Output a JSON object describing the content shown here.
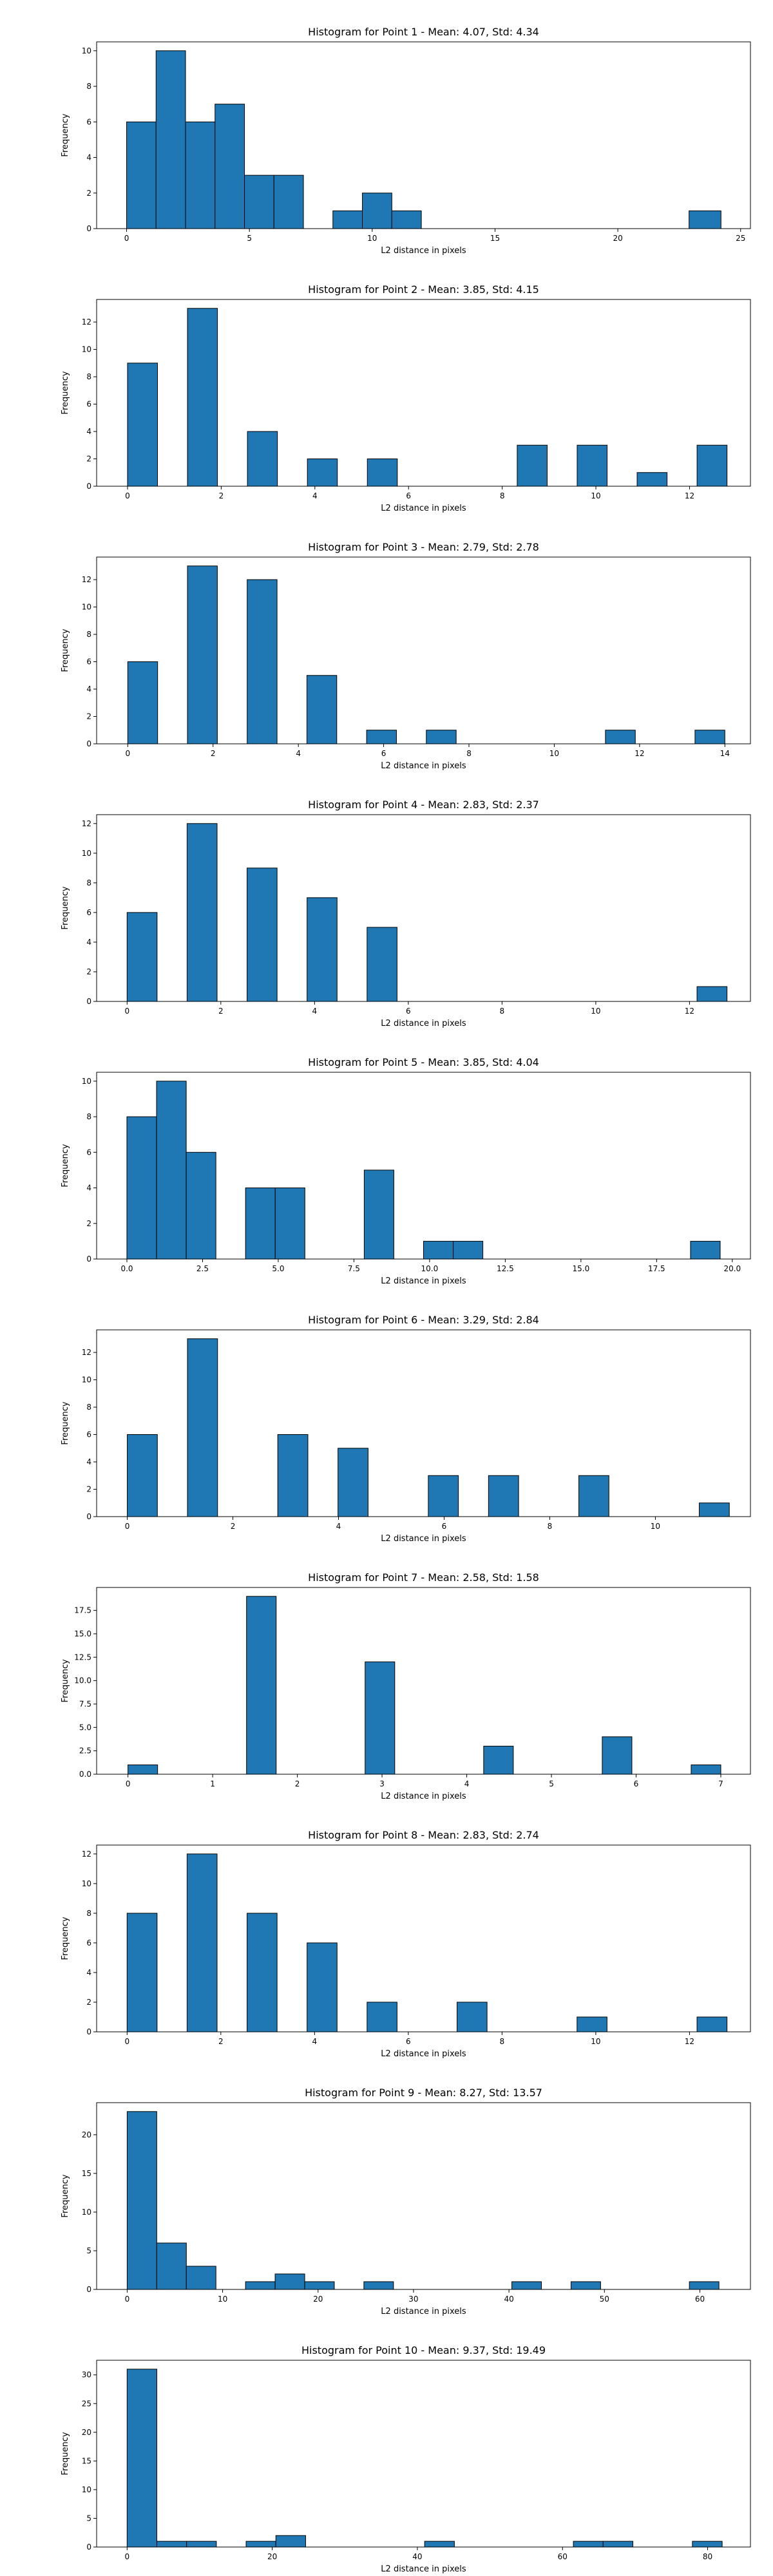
{
  "colors": {
    "bar_fill": "#1f77b4",
    "bar_edge": "#000000",
    "frame": "#000000"
  },
  "chart_data": [
    {
      "type": "bar",
      "title": "Histogram for Point 1 - Mean: 4.07, Std: 4.34",
      "xlabel": "L2 distance in pixels",
      "ylabel": "Frequency",
      "xlim": [
        -1.22,
        25.4
      ],
      "ylim": [
        0,
        10.5
      ],
      "xticks": [
        0,
        5,
        10,
        15,
        20,
        25
      ],
      "xtick_labels": [
        "0",
        "5",
        "10",
        "15",
        "20",
        "25"
      ],
      "yticks": [
        0,
        2,
        4,
        6,
        8,
        10
      ],
      "ytick_labels": [
        "0",
        "2",
        "4",
        "6",
        "8",
        "10"
      ],
      "bins": [
        {
          "x0": 0,
          "x1": 1.2,
          "count": 6
        },
        {
          "x0": 1.2,
          "x1": 2.4,
          "count": 10
        },
        {
          "x0": 2.4,
          "x1": 3.6,
          "count": 6
        },
        {
          "x0": 3.6,
          "x1": 4.8,
          "count": 7
        },
        {
          "x0": 4.8,
          "x1": 6.0,
          "count": 3
        },
        {
          "x0": 6.0,
          "x1": 7.2,
          "count": 3
        },
        {
          "x0": 8.4,
          "x1": 9.6,
          "count": 1
        },
        {
          "x0": 9.6,
          "x1": 10.8,
          "count": 2
        },
        {
          "x0": 10.8,
          "x1": 12.0,
          "count": 1
        },
        {
          "x0": 22.9,
          "x1": 24.2,
          "count": 1
        }
      ]
    },
    {
      "type": "bar",
      "title": "Histogram for Point 2 - Mean: 3.85, Std: 4.15",
      "xlabel": "L2 distance in pixels",
      "ylabel": "Frequency",
      "xlim": [
        -0.66,
        13.3
      ],
      "ylim": [
        0,
        13.65
      ],
      "xticks": [
        0,
        2,
        4,
        6,
        8,
        10,
        12
      ],
      "xtick_labels": [
        "0",
        "2",
        "4",
        "6",
        "8",
        "10",
        "12"
      ],
      "yticks": [
        0,
        2,
        4,
        6,
        8,
        10,
        12
      ],
      "ytick_labels": [
        "0",
        "2",
        "4",
        "6",
        "8",
        "10",
        "12"
      ],
      "bins": [
        {
          "x0": 0,
          "x1": 0.64,
          "count": 9
        },
        {
          "x0": 1.28,
          "x1": 1.92,
          "count": 13
        },
        {
          "x0": 2.56,
          "x1": 3.2,
          "count": 4
        },
        {
          "x0": 3.84,
          "x1": 4.48,
          "count": 2
        },
        {
          "x0": 5.12,
          "x1": 5.76,
          "count": 2
        },
        {
          "x0": 8.32,
          "x1": 8.96,
          "count": 3
        },
        {
          "x0": 9.6,
          "x1": 10.24,
          "count": 3
        },
        {
          "x0": 10.88,
          "x1": 11.52,
          "count": 1
        },
        {
          "x0": 12.16,
          "x1": 12.8,
          "count": 3
        }
      ]
    },
    {
      "type": "bar",
      "title": "Histogram for Point 3 - Mean: 2.79, Std: 2.78",
      "xlabel": "L2 distance in pixels",
      "ylabel": "Frequency",
      "xlim": [
        -0.73,
        14.6
      ],
      "ylim": [
        0,
        13.65
      ],
      "xticks": [
        0,
        2,
        4,
        6,
        8,
        10,
        12,
        14
      ],
      "xtick_labels": [
        "0",
        "2",
        "4",
        "6",
        "8",
        "10",
        "12",
        "14"
      ],
      "yticks": [
        0,
        2,
        4,
        6,
        8,
        10,
        12
      ],
      "ytick_labels": [
        "0",
        "2",
        "4",
        "6",
        "8",
        "10",
        "12"
      ],
      "bins": [
        {
          "x0": 0,
          "x1": 0.7,
          "count": 6
        },
        {
          "x0": 1.4,
          "x1": 2.1,
          "count": 13
        },
        {
          "x0": 2.8,
          "x1": 3.5,
          "count": 12
        },
        {
          "x0": 4.2,
          "x1": 4.9,
          "count": 5
        },
        {
          "x0": 5.6,
          "x1": 6.3,
          "count": 1
        },
        {
          "x0": 7.0,
          "x1": 7.7,
          "count": 1
        },
        {
          "x0": 11.2,
          "x1": 11.9,
          "count": 1
        },
        {
          "x0": 13.3,
          "x1": 14.0,
          "count": 1
        }
      ]
    },
    {
      "type": "bar",
      "title": "Histogram for Point 4 - Mean: 2.83, Std: 2.37",
      "xlabel": "L2 distance in pixels",
      "ylabel": "Frequency",
      "xlim": [
        -0.65,
        13.3
      ],
      "ylim": [
        0,
        12.6
      ],
      "xticks": [
        0,
        2,
        4,
        6,
        8,
        10,
        12
      ],
      "xtick_labels": [
        "0",
        "2",
        "4",
        "6",
        "8",
        "10",
        "12"
      ],
      "yticks": [
        0,
        2,
        4,
        6,
        8,
        10,
        12
      ],
      "ytick_labels": [
        "0",
        "2",
        "4",
        "6",
        "8",
        "10",
        "12"
      ],
      "bins": [
        {
          "x0": 0,
          "x1": 0.64,
          "count": 6
        },
        {
          "x0": 1.28,
          "x1": 1.92,
          "count": 12
        },
        {
          "x0": 2.56,
          "x1": 3.2,
          "count": 9
        },
        {
          "x0": 3.84,
          "x1": 4.48,
          "count": 7
        },
        {
          "x0": 5.12,
          "x1": 5.76,
          "count": 5
        },
        {
          "x0": 12.16,
          "x1": 12.8,
          "count": 1
        }
      ]
    },
    {
      "type": "bar",
      "title": "Histogram for Point 5 - Mean: 3.85, Std: 4.04",
      "xlabel": "L2 distance in pixels",
      "ylabel": "Frequency",
      "xlim": [
        -1.0,
        20.6
      ],
      "ylim": [
        0,
        10.5
      ],
      "xticks": [
        0,
        2.5,
        5,
        7.5,
        10,
        12.5,
        15,
        17.5,
        20
      ],
      "xtick_labels": [
        "0.0",
        "2.5",
        "5.0",
        "7.5",
        "10.0",
        "12.5",
        "15.0",
        "17.5",
        "20.0"
      ],
      "yticks": [
        0,
        2,
        4,
        6,
        8,
        10
      ],
      "ytick_labels": [
        "0",
        "2",
        "4",
        "6",
        "8",
        "10"
      ],
      "bins": [
        {
          "x0": 0,
          "x1": 0.98,
          "count": 8
        },
        {
          "x0": 0.98,
          "x1": 1.96,
          "count": 10
        },
        {
          "x0": 1.96,
          "x1": 2.94,
          "count": 6
        },
        {
          "x0": 3.92,
          "x1": 4.9,
          "count": 4
        },
        {
          "x0": 4.9,
          "x1": 5.88,
          "count": 4
        },
        {
          "x0": 7.84,
          "x1": 8.82,
          "count": 5
        },
        {
          "x0": 9.8,
          "x1": 10.78,
          "count": 1
        },
        {
          "x0": 10.78,
          "x1": 11.76,
          "count": 1
        },
        {
          "x0": 18.62,
          "x1": 19.6,
          "count": 1
        }
      ]
    },
    {
      "type": "bar",
      "title": "Histogram for Point 6 - Mean: 3.29, Std: 2.84",
      "xlabel": "L2 distance in pixels",
      "ylabel": "Frequency",
      "xlim": [
        -0.58,
        11.8
      ],
      "ylim": [
        0,
        13.65
      ],
      "xticks": [
        0,
        2,
        4,
        6,
        8,
        10
      ],
      "xtick_labels": [
        "0",
        "2",
        "4",
        "6",
        "8",
        "10"
      ],
      "yticks": [
        0,
        2,
        4,
        6,
        8,
        10,
        12
      ],
      "ytick_labels": [
        "0",
        "2",
        "4",
        "6",
        "8",
        "10",
        "12"
      ],
      "bins": [
        {
          "x0": 0,
          "x1": 0.57,
          "count": 6
        },
        {
          "x0": 1.14,
          "x1": 1.71,
          "count": 13
        },
        {
          "x0": 2.85,
          "x1": 3.42,
          "count": 6
        },
        {
          "x0": 3.99,
          "x1": 4.56,
          "count": 5
        },
        {
          "x0": 5.7,
          "x1": 6.27,
          "count": 3
        },
        {
          "x0": 6.84,
          "x1": 7.41,
          "count": 3
        },
        {
          "x0": 8.55,
          "x1": 9.12,
          "count": 3
        },
        {
          "x0": 10.83,
          "x1": 11.4,
          "count": 1
        }
      ]
    },
    {
      "type": "bar",
      "title": "Histogram for Point 7 - Mean: 2.58, Std: 1.58",
      "xlabel": "L2 distance in pixels",
      "ylabel": "Frequency",
      "xlim": [
        -0.37,
        7.35
      ],
      "ylim": [
        0,
        19.95
      ],
      "xticks": [
        0,
        1,
        2,
        3,
        4,
        5,
        6,
        7
      ],
      "xtick_labels": [
        "0",
        "1",
        "2",
        "3",
        "4",
        "5",
        "6",
        "7"
      ],
      "yticks": [
        0,
        2.5,
        5,
        7.5,
        10,
        12.5,
        15,
        17.5
      ],
      "ytick_labels": [
        "0.0",
        "2.5",
        "5.0",
        "7.5",
        "10.0",
        "12.5",
        "15.0",
        "17.5"
      ],
      "bins": [
        {
          "x0": 0,
          "x1": 0.35,
          "count": 1
        },
        {
          "x0": 1.4,
          "x1": 1.75,
          "count": 19
        },
        {
          "x0": 2.8,
          "x1": 3.15,
          "count": 12
        },
        {
          "x0": 4.2,
          "x1": 4.55,
          "count": 3
        },
        {
          "x0": 5.6,
          "x1": 5.95,
          "count": 4
        },
        {
          "x0": 6.65,
          "x1": 7.0,
          "count": 1
        }
      ]
    },
    {
      "type": "bar",
      "title": "Histogram for Point 8 - Mean: 2.83, Std: 2.74",
      "xlabel": "L2 distance in pixels",
      "ylabel": "Frequency",
      "xlim": [
        -0.65,
        13.3
      ],
      "ylim": [
        0,
        12.6
      ],
      "xticks": [
        0,
        2,
        4,
        6,
        8,
        10,
        12
      ],
      "xtick_labels": [
        "0",
        "2",
        "4",
        "6",
        "8",
        "10",
        "12"
      ],
      "yticks": [
        0,
        2,
        4,
        6,
        8,
        10,
        12
      ],
      "ytick_labels": [
        "0",
        "2",
        "4",
        "6",
        "8",
        "10",
        "12"
      ],
      "bins": [
        {
          "x0": 0,
          "x1": 0.64,
          "count": 8
        },
        {
          "x0": 1.28,
          "x1": 1.92,
          "count": 12
        },
        {
          "x0": 2.56,
          "x1": 3.2,
          "count": 8
        },
        {
          "x0": 3.84,
          "x1": 4.48,
          "count": 6
        },
        {
          "x0": 5.12,
          "x1": 5.76,
          "count": 2
        },
        {
          "x0": 7.04,
          "x1": 7.68,
          "count": 2
        },
        {
          "x0": 9.6,
          "x1": 10.24,
          "count": 1
        },
        {
          "x0": 12.16,
          "x1": 12.8,
          "count": 1
        }
      ]
    },
    {
      "type": "bar",
      "title": "Histogram for Point 9 - Mean: 8.27, Std: 13.57",
      "xlabel": "L2 distance in pixels",
      "ylabel": "Frequency",
      "xlim": [
        -3.2,
        65.3
      ],
      "ylim": [
        0,
        24.15
      ],
      "xticks": [
        0,
        10,
        20,
        30,
        40,
        50,
        60
      ],
      "xtick_labels": [
        "0",
        "10",
        "20",
        "30",
        "40",
        "50",
        "60"
      ],
      "yticks": [
        0,
        5,
        10,
        15,
        20
      ],
      "ytick_labels": [
        "0",
        "5",
        "10",
        "15",
        "20"
      ],
      "bins": [
        {
          "x0": 0,
          "x1": 3.1,
          "count": 23
        },
        {
          "x0": 3.1,
          "x1": 6.2,
          "count": 6
        },
        {
          "x0": 6.2,
          "x1": 9.3,
          "count": 3
        },
        {
          "x0": 12.4,
          "x1": 15.5,
          "count": 1
        },
        {
          "x0": 15.5,
          "x1": 18.6,
          "count": 2
        },
        {
          "x0": 18.6,
          "x1": 21.7,
          "count": 1
        },
        {
          "x0": 24.8,
          "x1": 27.9,
          "count": 1
        },
        {
          "x0": 40.3,
          "x1": 43.4,
          "count": 1
        },
        {
          "x0": 46.5,
          "x1": 49.6,
          "count": 1
        },
        {
          "x0": 58.9,
          "x1": 62.0,
          "count": 1
        }
      ]
    },
    {
      "type": "bar",
      "title": "Histogram for Point 10 - Mean: 9.37, Std: 19.49",
      "xlabel": "L2 distance in pixels",
      "ylabel": "Frequency",
      "xlim": [
        -4.2,
        85.9
      ],
      "ylim": [
        0,
        32.55
      ],
      "xticks": [
        0,
        20,
        40,
        60,
        80
      ],
      "xtick_labels": [
        "0",
        "20",
        "40",
        "60",
        "80"
      ],
      "yticks": [
        0,
        5,
        10,
        15,
        20,
        25,
        30
      ],
      "ytick_labels": [
        "0",
        "5",
        "10",
        "15",
        "20",
        "25",
        "30"
      ],
      "bins": [
        {
          "x0": 0,
          "x1": 4.1,
          "count": 31
        },
        {
          "x0": 4.1,
          "x1": 8.2,
          "count": 1
        },
        {
          "x0": 8.2,
          "x1": 12.3,
          "count": 1
        },
        {
          "x0": 16.4,
          "x1": 20.5,
          "count": 1
        },
        {
          "x0": 20.5,
          "x1": 24.6,
          "count": 2
        },
        {
          "x0": 41.0,
          "x1": 45.1,
          "count": 1
        },
        {
          "x0": 61.5,
          "x1": 65.6,
          "count": 1
        },
        {
          "x0": 65.6,
          "x1": 69.7,
          "count": 1
        },
        {
          "x0": 77.9,
          "x1": 82.0,
          "count": 1
        }
      ]
    }
  ]
}
